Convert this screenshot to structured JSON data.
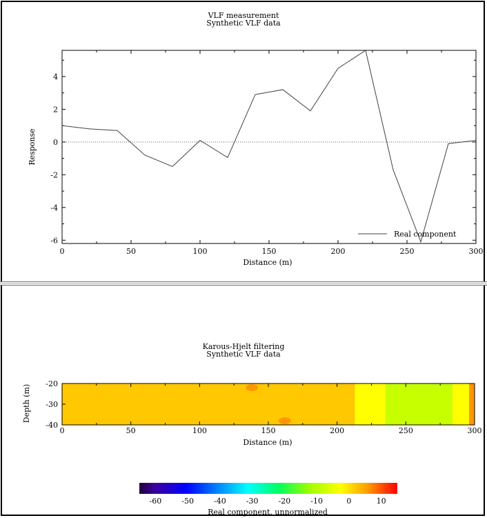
{
  "chart_data": [
    {
      "type": "line",
      "title": "VLF measurement",
      "subtitle": "Synthetic VLF data",
      "xlabel": "Distance (m)",
      "ylabel": "Response",
      "xlim": [
        0,
        300
      ],
      "ylim": [
        -6.2,
        5.6
      ],
      "xticks": [
        0,
        50,
        100,
        150,
        200,
        250,
        300
      ],
      "yticks": [
        -6,
        -4,
        -2,
        0,
        2,
        4
      ],
      "zero_line": "dotted",
      "legend": "bottom-right",
      "series": [
        {
          "name": "Real component",
          "color": "#404040",
          "x": [
            0,
            20,
            40,
            60,
            80,
            100,
            120,
            140,
            160,
            180,
            200,
            220,
            240,
            260,
            280,
            300
          ],
          "y": [
            1.0,
            0.8,
            0.7,
            -0.8,
            -1.5,
            0.1,
            -0.95,
            2.9,
            3.2,
            1.9,
            4.5,
            5.6,
            -1.7,
            -6.1,
            -0.1,
            0.1
          ]
        }
      ]
    },
    {
      "type": "heatmap",
      "title": "Karous-Hjelt filtering",
      "subtitle": "Synthetic VLF data",
      "xlabel": "Distance (m)",
      "ylabel": "Depth (m)",
      "xlim": [
        0,
        300
      ],
      "ylim": [
        -40,
        -20
      ],
      "xticks": [
        0,
        50,
        100,
        150,
        200,
        250,
        300
      ],
      "yticks": [
        -20,
        -30,
        -40
      ],
      "colorbar": {
        "label": "Real component, unnormalized",
        "ticks": [
          -60,
          -50,
          -40,
          -30,
          -20,
          -10,
          0,
          10
        ],
        "range": [
          -65,
          15
        ],
        "placement": "bottom"
      },
      "regions": [
        {
          "x": [
            0,
            213
          ],
          "value": 3,
          "color": "#ffc800"
        },
        {
          "x": [
            213,
            235
          ],
          "value": -2,
          "color": "#ffff00"
        },
        {
          "x": [
            235,
            284
          ],
          "value": -9,
          "color": "#c8ff00"
        },
        {
          "x": [
            284,
            296
          ],
          "value": -2,
          "color": "#ffff00"
        },
        {
          "x": [
            296,
            300
          ],
          "value": 8,
          "color": "#ff9600"
        }
      ],
      "patches": [
        {
          "x": 138,
          "depth": -22,
          "value": 8,
          "color": "#ff9600"
        },
        {
          "x": 162,
          "depth": -38,
          "value": 8,
          "color": "#ff9600"
        }
      ]
    }
  ]
}
